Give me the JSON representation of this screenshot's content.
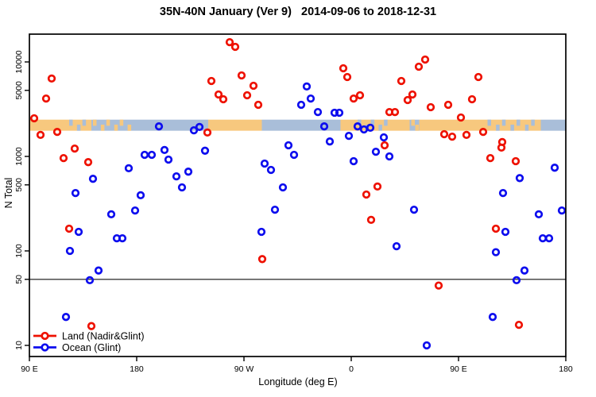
{
  "colors": {
    "land_series": "#ee1100",
    "ocean_series": "#0d0dee",
    "strip_land": "#f7c87e",
    "strip_ocean": "#a9bed9",
    "frame": "#000000",
    "reference_line": "#3a3a3a",
    "background": "#ffffff"
  },
  "chart_data": {
    "type": "scatter",
    "title": "35N-40N January (Ver 9)   2014-09-06 to 2018-12-31",
    "xlabel": "Longitude (deg E)",
    "ylabel": "N Total",
    "x_axis": {
      "range": [
        -270,
        180
      ],
      "ticks": [
        -270,
        -180,
        -90,
        0,
        90,
        180
      ],
      "tick_labels": [
        "90 E",
        "180",
        "90 W",
        "0",
        "90 E",
        "180"
      ],
      "note": "longitude axis wraps across the dateline"
    },
    "y_axis": {
      "scale": "log",
      "range": [
        7,
        21000
      ],
      "ticks": [
        10000,
        5000,
        1000,
        500,
        100,
        50,
        10
      ],
      "tick_labels": [
        "10000",
        "5000",
        "1000",
        "500",
        "100",
        "50",
        "10"
      ]
    },
    "reference_line_n": 50,
    "map_strip": {
      "n_top": 2450,
      "n_bottom": 1870,
      "segments": [
        {
          "from": -270,
          "to": -238,
          "type": "land"
        },
        {
          "from": -238,
          "to": -218,
          "type": "mixed-land"
        },
        {
          "from": -218,
          "to": -181,
          "type": "mixed-ocean"
        },
        {
          "from": -181,
          "to": -120,
          "type": "ocean"
        },
        {
          "from": -120,
          "to": -75,
          "type": "land"
        },
        {
          "from": -75,
          "to": -9,
          "type": "ocean"
        },
        {
          "from": -9,
          "to": 4,
          "type": "land"
        },
        {
          "from": 4,
          "to": 35,
          "type": "mixed-land"
        },
        {
          "from": 35,
          "to": 49,
          "type": "land"
        },
        {
          "from": 49,
          "to": 57,
          "type": "mixed-ocean"
        },
        {
          "from": 57,
          "to": 113,
          "type": "land"
        },
        {
          "from": 113,
          "to": 159,
          "type": "mixed-land"
        },
        {
          "from": 159,
          "to": 180,
          "type": "ocean"
        }
      ]
    },
    "legend_position": "bottom-left",
    "series": [
      {
        "name": "Land (Nadir&Glint)",
        "marker": "open-circle",
        "color": "#ee1100",
        "points": [
          [
            -251.3,
            6670
          ],
          [
            -256,
            4100
          ],
          [
            -266,
            2530
          ],
          [
            -260.7,
            1690
          ],
          [
            -246.7,
            1820
          ],
          [
            -241.3,
            960
          ],
          [
            -232,
            1210
          ],
          [
            -220.7,
            870
          ],
          [
            -236.7,
            172
          ],
          [
            -218,
            16
          ],
          [
            -120.7,
            1790
          ],
          [
            -102,
            16200
          ],
          [
            -97.3,
            14450
          ],
          [
            -92,
            7200
          ],
          [
            -117.3,
            6280
          ],
          [
            -82,
            5600
          ],
          [
            -111.3,
            4520
          ],
          [
            -107.3,
            4030
          ],
          [
            -87.3,
            4440
          ],
          [
            -78,
            3520
          ],
          [
            -6.7,
            8570
          ],
          [
            -3.3,
            6920
          ],
          [
            2,
            4100
          ],
          [
            7.3,
            4440
          ],
          [
            32,
            2950
          ],
          [
            36.7,
            2950
          ],
          [
            62,
            10600
          ],
          [
            56.7,
            8900
          ],
          [
            42,
            6280
          ],
          [
            51.3,
            4520
          ],
          [
            47.3,
            3950
          ],
          [
            66.7,
            3320
          ],
          [
            81.3,
            3520
          ],
          [
            106.7,
            6920
          ],
          [
            101.3,
            4030
          ],
          [
            92,
            2580
          ],
          [
            78,
            1720
          ],
          [
            84.7,
            1620
          ],
          [
            96.7,
            1690
          ],
          [
            110.7,
            1820
          ],
          [
            126.7,
            1420
          ],
          [
            28,
            1310
          ],
          [
            12.7,
            395
          ],
          [
            22,
            480
          ],
          [
            16.7,
            213
          ],
          [
            126,
            1240
          ],
          [
            116.7,
            960
          ],
          [
            138,
            890
          ],
          [
            121.3,
            172
          ],
          [
            -74.7,
            82
          ],
          [
            73.3,
            43
          ],
          [
            140.7,
            16.5
          ]
        ]
      },
      {
        "name": "Ocean (Glint)",
        "marker": "open-circle",
        "color": "#0d0dee",
        "points": [
          [
            -161.3,
            2080
          ],
          [
            -132,
            1890
          ],
          [
            -127.3,
            2050
          ],
          [
            -216.7,
            580
          ],
          [
            -231.3,
            410
          ],
          [
            -186.7,
            750
          ],
          [
            -173.3,
            1040
          ],
          [
            -167.3,
            1040
          ],
          [
            -156.7,
            1170
          ],
          [
            -153.3,
            925
          ],
          [
            -146.7,
            615
          ],
          [
            -136.7,
            690
          ],
          [
            -142,
            470
          ],
          [
            -122.7,
            1150
          ],
          [
            -176.7,
            388
          ],
          [
            -181.3,
            268
          ],
          [
            -201.3,
            244
          ],
          [
            -228.7,
            159
          ],
          [
            -196.7,
            136
          ],
          [
            -192,
            136
          ],
          [
            -236,
            100
          ],
          [
            -212,
            62
          ],
          [
            -219.3,
            49
          ],
          [
            -239.3,
            20
          ],
          [
            -37.3,
            5500
          ],
          [
            -34,
            4100
          ],
          [
            -42,
            3520
          ],
          [
            -28,
            2950
          ],
          [
            -14,
            2900
          ],
          [
            -10,
            2900
          ],
          [
            -22.7,
            2080
          ],
          [
            5.3,
            2080
          ],
          [
            10.7,
            1930
          ],
          [
            16,
            2010
          ],
          [
            27.3,
            1590
          ],
          [
            -2,
            1650
          ],
          [
            -18,
            1440
          ],
          [
            -52.7,
            1310
          ],
          [
            -48,
            1040
          ],
          [
            -72.7,
            840
          ],
          [
            -67.3,
            720
          ],
          [
            -57.3,
            470
          ],
          [
            -64,
            273
          ],
          [
            -75.3,
            159
          ],
          [
            2,
            890
          ],
          [
            20.7,
            1120
          ],
          [
            32,
            1000
          ],
          [
            170.7,
            760
          ],
          [
            141.3,
            590
          ],
          [
            127.3,
            410
          ],
          [
            52.7,
            273
          ],
          [
            157.3,
            244
          ],
          [
            176.7,
            268
          ],
          [
            129.3,
            159
          ],
          [
            160.7,
            136
          ],
          [
            166,
            136
          ],
          [
            38,
            112
          ],
          [
            121.3,
            97
          ],
          [
            145.3,
            62
          ],
          [
            138.7,
            49
          ],
          [
            118.7,
            20
          ],
          [
            63.3,
            10
          ]
        ]
      }
    ]
  }
}
